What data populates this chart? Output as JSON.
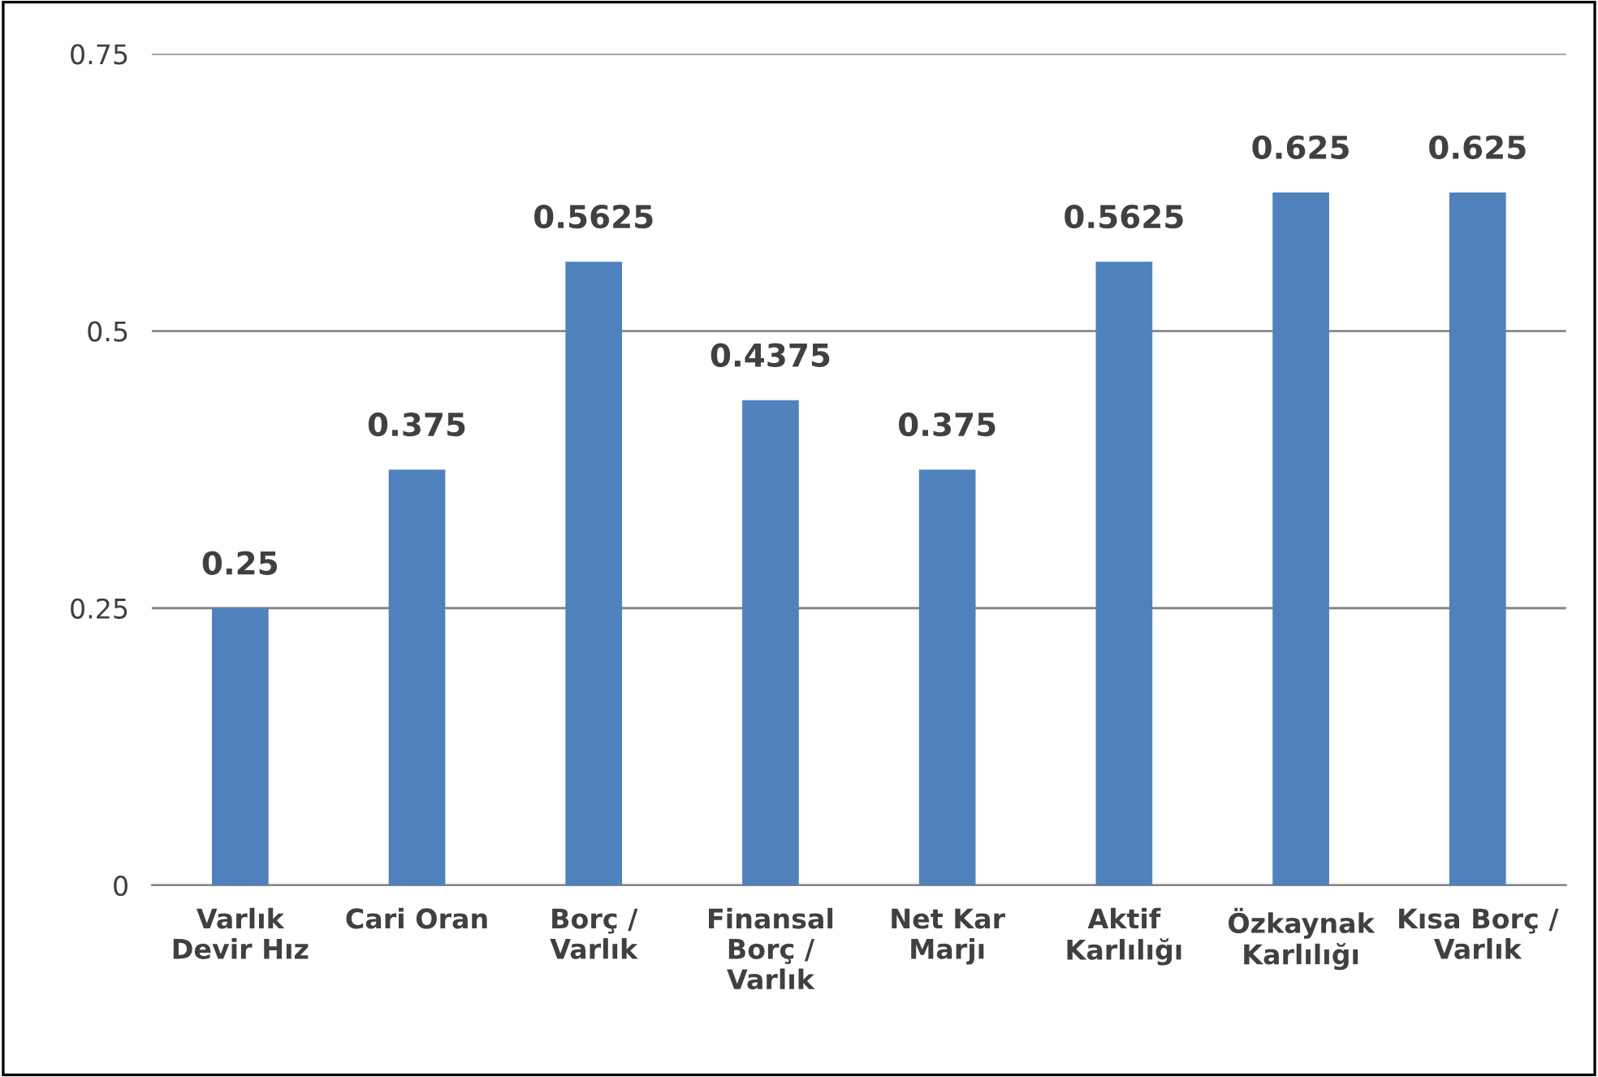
{
  "chart_data": {
    "type": "bar",
    "categories": [
      "Varlık\nDevir Hız",
      "Cari Oran",
      "Borç /\nVarlık",
      "Finansal\nBorç /\nVarlık",
      "Net Kar\nMarjı",
      "Aktif\nKarlılığı",
      "Özkaynak\nKarlılığı",
      "Kısa Borç /\nVarlık"
    ],
    "values": [
      0.25,
      0.375,
      0.5625,
      0.4375,
      0.375,
      0.5625,
      0.625,
      0.625
    ],
    "color": "#4f81bd",
    "ylim": [
      0,
      0.75
    ],
    "yticks": [
      0,
      0.25,
      0.5,
      0.75
    ],
    "grid": "y",
    "data_labels": true,
    "legend": false
  }
}
